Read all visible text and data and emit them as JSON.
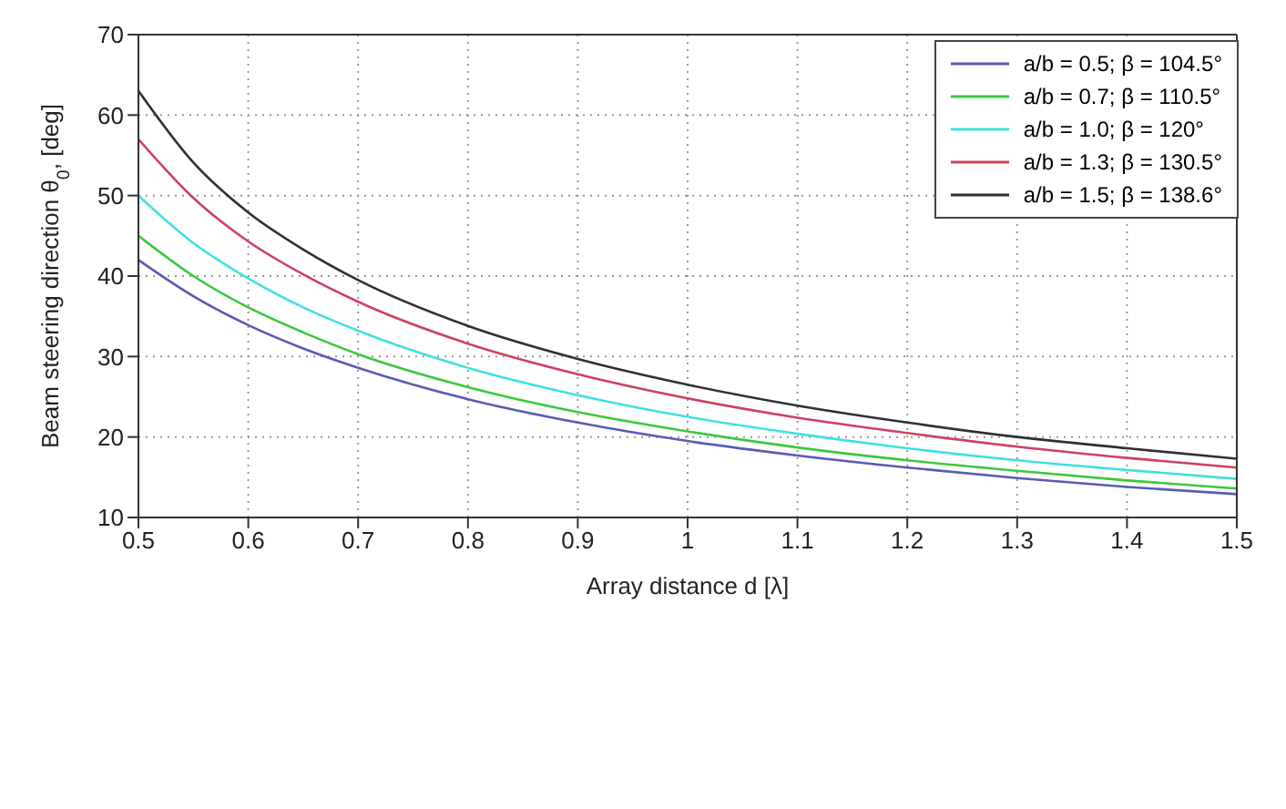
{
  "chart_data": {
    "type": "line",
    "xlabel": "Array distance d [λ]",
    "ylabel": "Beam steering direction θ$_{0}$, [deg]",
    "x": [
      0.5,
      0.55,
      0.6,
      0.65,
      0.7,
      0.8,
      0.9,
      1.0,
      1.1,
      1.2,
      1.3,
      1.4,
      1.5
    ],
    "series": [
      {
        "name": "a/b = 0.5; β = 104.5°",
        "color": "#5a5ab4",
        "values": [
          42,
          37.5,
          33.9,
          31.0,
          28.6,
          24.7,
          21.8,
          19.5,
          17.7,
          16.2,
          14.9,
          13.8,
          12.9
        ]
      },
      {
        "name": "a/b = 0.7; β = 110.5°",
        "color": "#3cc83c",
        "values": [
          45,
          40.0,
          36.1,
          33.0,
          30.3,
          26.2,
          23.1,
          20.7,
          18.7,
          17.1,
          15.8,
          14.6,
          13.6
        ]
      },
      {
        "name": "a/b = 1.0; β = 120°",
        "color": "#40e0e0",
        "values": [
          50,
          44.1,
          39.7,
          36.1,
          33.2,
          28.6,
          25.2,
          22.5,
          20.4,
          18.6,
          17.1,
          15.9,
          14.8
        ]
      },
      {
        "name": "a/b = 1.3; β = 130.5°",
        "color": "#d04060",
        "values": [
          57,
          49.7,
          44.3,
          40.2,
          36.8,
          31.6,
          27.8,
          24.8,
          22.4,
          20.5,
          18.8,
          17.4,
          16.2
        ]
      },
      {
        "name": "a/b = 1.5; β = 138.6°",
        "color": "#303030",
        "values": [
          63,
          54.1,
          47.9,
          43.3,
          39.5,
          33.8,
          29.7,
          26.5,
          23.9,
          21.8,
          20.0,
          18.6,
          17.3
        ]
      }
    ],
    "xlim": [
      0.5,
      1.5
    ],
    "xticks": [
      0.5,
      0.6,
      0.7,
      0.8,
      0.9,
      1,
      1.1,
      1.2,
      1.3,
      1.4,
      1.5
    ],
    "ylim": [
      10,
      70
    ],
    "yticks": [
      10,
      20,
      30,
      40,
      50,
      60,
      70
    ],
    "grid": true,
    "legend": "top right",
    "marker": "none",
    "line_style": "solid"
  }
}
